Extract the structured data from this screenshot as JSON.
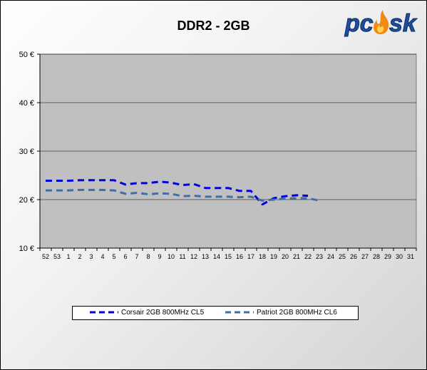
{
  "logo": {
    "text": "pcosk"
  },
  "chart_data": {
    "type": "line",
    "title": "DDR2 - 2GB",
    "xlabel": "",
    "ylabel": "",
    "categories": [
      "52",
      "53",
      "1",
      "2",
      "3",
      "4",
      "5",
      "6",
      "7",
      "8",
      "9",
      "10",
      "11",
      "12",
      "13",
      "14",
      "15",
      "16",
      "17",
      "18",
      "19",
      "20",
      "21",
      "22",
      "23",
      "24",
      "25",
      "26",
      "27",
      "28",
      "29",
      "30",
      "31"
    ],
    "y_ticks": [
      "10 €",
      "20 €",
      "30 €",
      "40 €",
      "50 €"
    ],
    "ylim": [
      10,
      50
    ],
    "grid": true,
    "legend_position": "bottom",
    "series": [
      {
        "name": "Corsair 2GB 800MHz CL5",
        "color": "#0000dd",
        "values": [
          23.9,
          23.9,
          23.9,
          24.0,
          24.0,
          24.0,
          24.0,
          23.1,
          23.4,
          23.4,
          23.7,
          23.5,
          23.0,
          23.2,
          22.4,
          22.4,
          22.4,
          21.8,
          21.8,
          19.0,
          20.3,
          20.7,
          20.9,
          20.8,
          null,
          null,
          null,
          null,
          null,
          null,
          null,
          null,
          null
        ]
      },
      {
        "name": "Patriot 2GB 800MHz CL6",
        "color": "#3f6fa3",
        "values": [
          21.9,
          21.9,
          21.9,
          22.0,
          22.0,
          22.0,
          21.9,
          21.2,
          21.4,
          21.1,
          21.3,
          21.2,
          20.7,
          20.8,
          20.6,
          20.6,
          20.6,
          20.5,
          20.6,
          19.8,
          20.0,
          20.2,
          20.3,
          20.3,
          19.8,
          null,
          null,
          null,
          null,
          null,
          null,
          null,
          null
        ]
      }
    ]
  }
}
